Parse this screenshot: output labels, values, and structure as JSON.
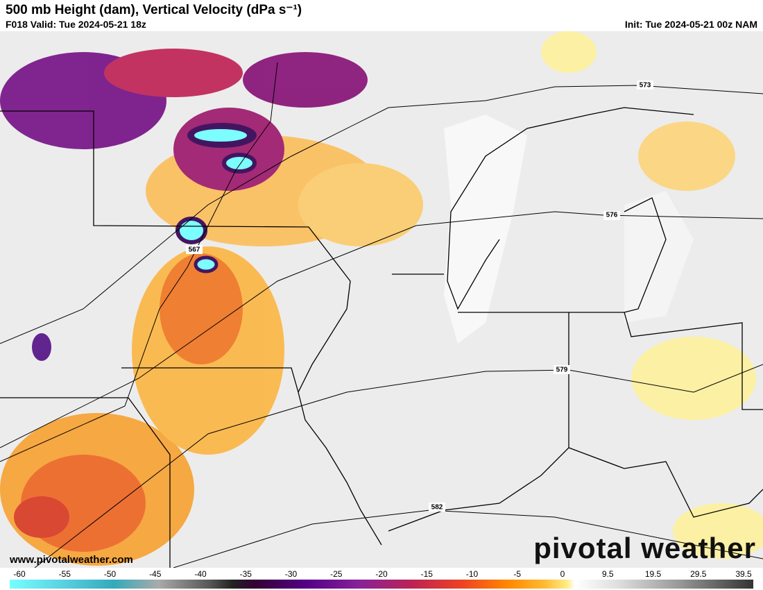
{
  "header": {
    "title": "500 mb Height (dam), Vertical Velocity (dPa s⁻¹)",
    "valid": "F018 Valid: Tue 2024-05-21 18z",
    "init": "Init: Tue 2024-05-21 00z NAM"
  },
  "contour_labels": [
    573,
    576,
    567,
    579,
    582
  ],
  "colorbar_ticks": [
    -60,
    -55,
    -50,
    -45,
    -40,
    -35,
    -30,
    -25,
    -20,
    -15,
    -10,
    -5,
    0,
    9.5,
    19.5,
    29.5,
    39.5
  ],
  "footer": {
    "website": "www.pivotalweather.com",
    "logo": "pivotal weather"
  }
}
